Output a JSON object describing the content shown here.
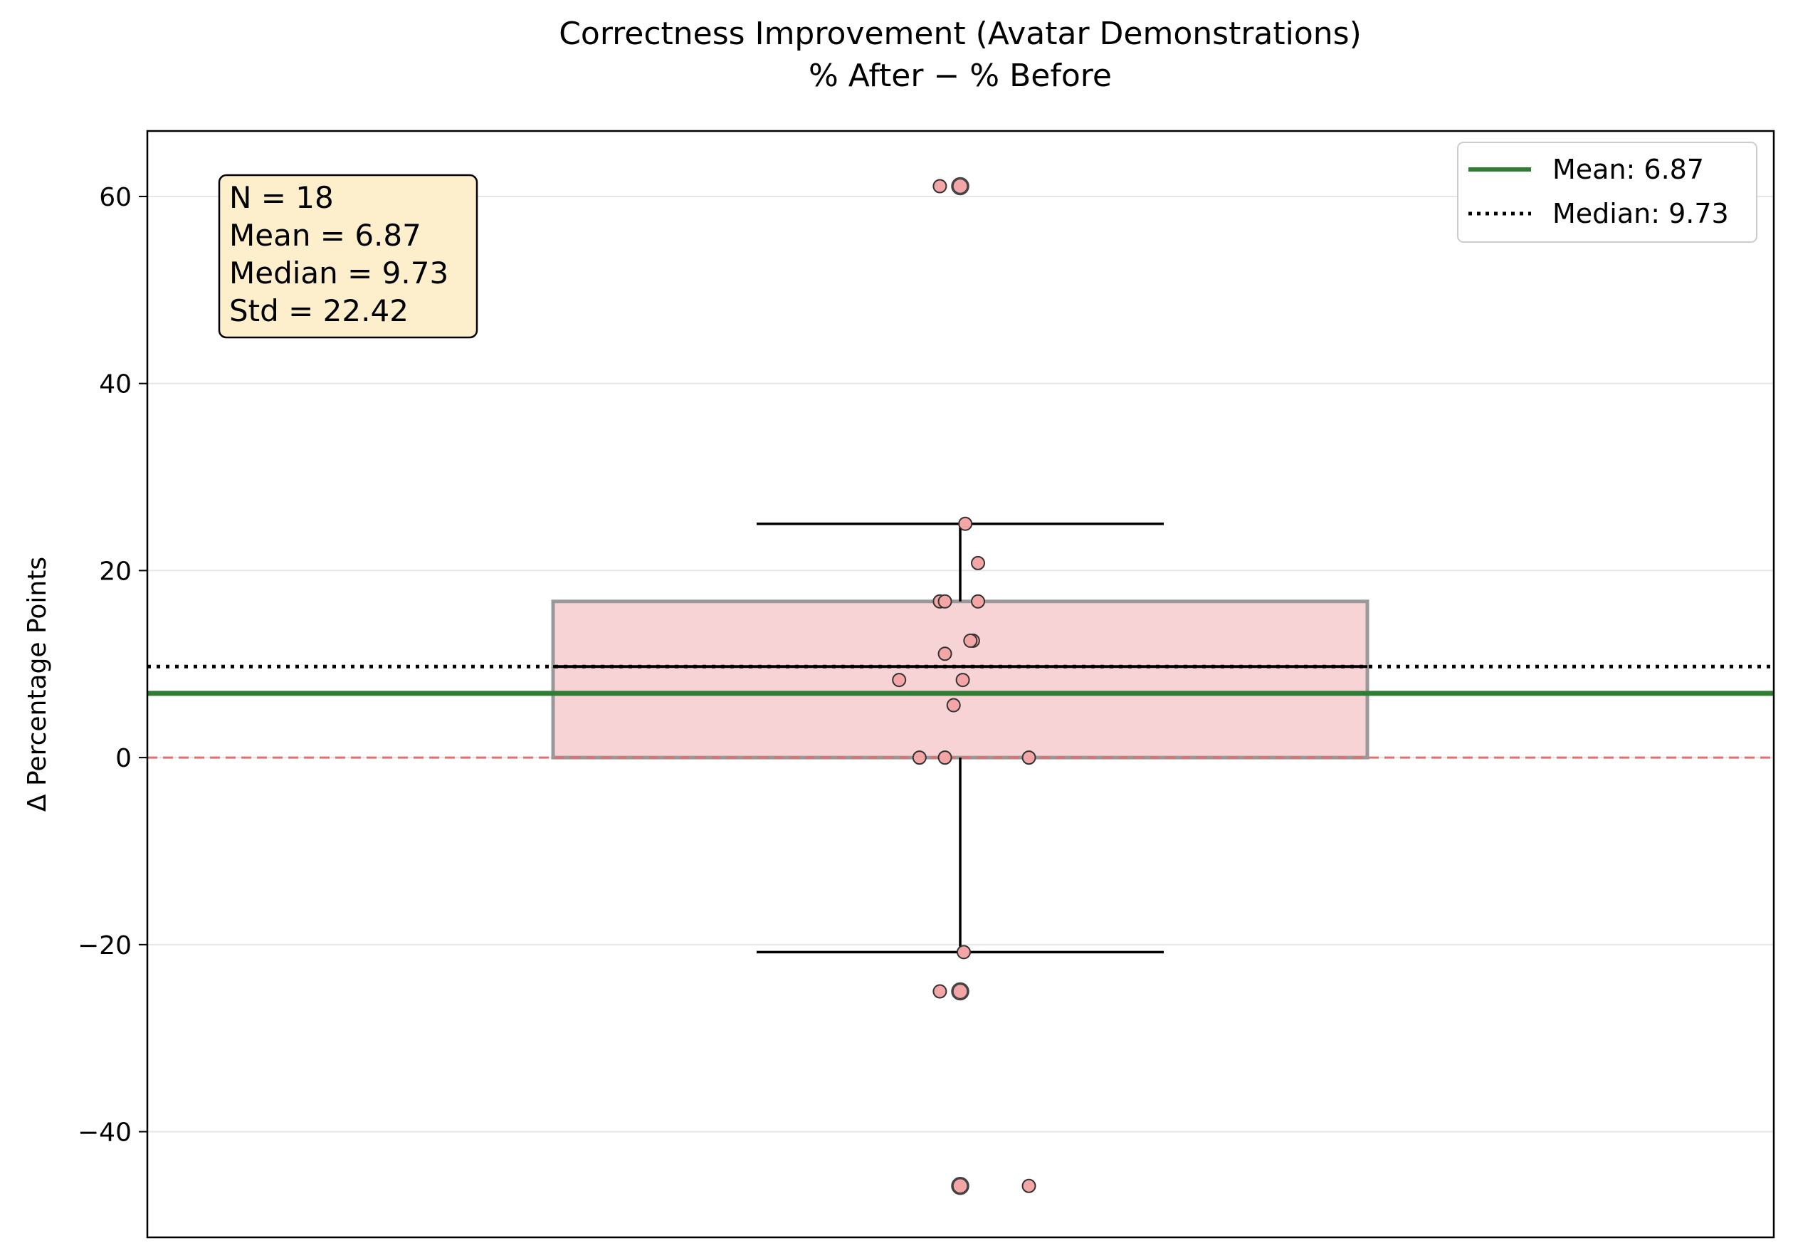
{
  "chart_data": {
    "type": "box",
    "title": "Correctness Improvement (Avatar Demonstrations)",
    "subtitle": "% After − % Before",
    "xlabel": "",
    "ylabel": "Δ Percentage Points",
    "ylim": [
      -51.3,
      67.0
    ],
    "yticks": [
      -40,
      -20,
      0,
      20,
      40,
      60
    ],
    "ytick_labels": [
      "−40",
      "−20",
      "0",
      "20",
      "40",
      "60"
    ],
    "grid": "horizontal",
    "stats_box": {
      "lines": [
        "N = 18",
        "Mean = 6.87",
        "Median = 9.73",
        "Std = 22.42"
      ]
    },
    "legend": {
      "placement": "top-right",
      "entries": [
        {
          "label": "Mean: 6.87",
          "style": "solid",
          "color": "#2e7d32"
        },
        {
          "label": "Median: 9.73",
          "style": "dotted",
          "color": "#000000"
        }
      ]
    },
    "box": {
      "q1": 0.0,
      "median": 9.73,
      "q3": 16.7,
      "whisker_low": -20.8,
      "whisker_high": 25.0,
      "fliers": [
        61.1,
        -25.0,
        -45.8
      ]
    },
    "mean": 6.87,
    "median": 9.73,
    "reference_line": 0,
    "points": [
      {
        "jitter": -0.04,
        "y": 61.1
      },
      {
        "jitter": 0.01,
        "y": 25.0
      },
      {
        "jitter": 0.035,
        "y": 20.8
      },
      {
        "jitter": -0.04,
        "y": 16.7
      },
      {
        "jitter": -0.03,
        "y": 16.7
      },
      {
        "jitter": 0.035,
        "y": 16.7
      },
      {
        "jitter": 0.025,
        "y": 12.5
      },
      {
        "jitter": 0.02,
        "y": 12.5
      },
      {
        "jitter": -0.03,
        "y": 11.1
      },
      {
        "jitter": -0.12,
        "y": 8.3
      },
      {
        "jitter": 0.005,
        "y": 8.3
      },
      {
        "jitter": -0.013,
        "y": 5.6
      },
      {
        "jitter": -0.08,
        "y": 0.0
      },
      {
        "jitter": -0.03,
        "y": 0.0
      },
      {
        "jitter": 0.135,
        "y": 0.0
      },
      {
        "jitter": 0.007,
        "y": -20.8
      },
      {
        "jitter": -0.04,
        "y": -25.0
      },
      {
        "jitter": 0.135,
        "y": -45.8
      }
    ],
    "colors": {
      "box_fill": "#f8d3d5",
      "box_edge": "#999999",
      "point_fill": "#f4a6a6",
      "point_edge": "#333333",
      "mean_line": "#2e7d32",
      "median_line": "#000000",
      "zero_line": "#e07070",
      "stats_fill": "#fdefcb",
      "grid": "#e6e6e6"
    }
  }
}
